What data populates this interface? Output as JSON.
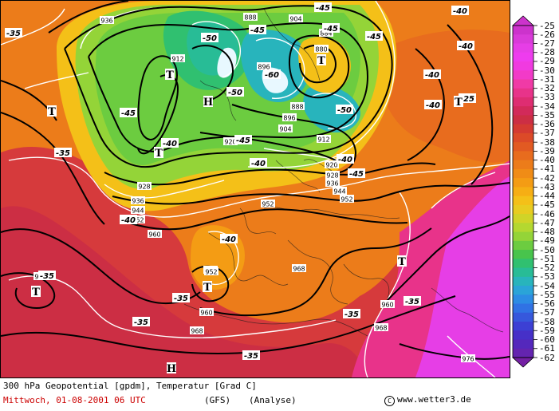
{
  "header": {
    "title": "300 hPa Geopotential [gpdm], Temperatur [Grad C]",
    "datetime": "Mittwoch, 01-08-2001  06 UTC",
    "model": "(GFS)",
    "run": "(Analyse)",
    "copyright": "www.wetter3.de",
    "copyright_symbol": "C"
  },
  "legend": {
    "values": [
      "-25",
      "-26",
      "-27",
      "-28",
      "-29",
      "-30",
      "-31",
      "-32",
      "-33",
      "-34",
      "-35",
      "-36",
      "-37",
      "-38",
      "-39",
      "-40",
      "-41",
      "-42",
      "-43",
      "-44",
      "-45",
      "-46",
      "-47",
      "-48",
      "-49",
      "-50",
      "-51",
      "-52",
      "-53",
      "-54",
      "-55",
      "-56",
      "-57",
      "-58",
      "-59",
      "-60",
      "-61",
      "-62"
    ],
    "colors": [
      "#cc33cc",
      "#d93bd9",
      "#e63ee6",
      "#ee3cee",
      "#f03ae0",
      "#f23ac8",
      "#f03aa6",
      "#e8338a",
      "#de2d72",
      "#d22a5a",
      "#cc2e44",
      "#d43a32",
      "#dc4a28",
      "#e25a22",
      "#e86c1e",
      "#ec7c1a",
      "#f08c16",
      "#f49c14",
      "#f6ae14",
      "#f4c018",
      "#e8cc20",
      "#d0d428",
      "#b4d830",
      "#94d438",
      "#6ccc40",
      "#48c44c",
      "#30c070",
      "#28bc96",
      "#28b4bc",
      "#2aa4d8",
      "#2c8ce4",
      "#3072e4",
      "#3658dc",
      "#3c40d4",
      "#4630c8",
      "#5428bc",
      "#6424b0",
      "#7420a4"
    ]
  },
  "map": {
    "geopotential_labels": [
      "936",
      "888",
      "904",
      "880",
      "884",
      "912",
      "896",
      "888",
      "896",
      "904",
      "912",
      "920",
      "920",
      "928",
      "928",
      "936",
      "944",
      "952",
      "952",
      "936",
      "944",
      "952",
      "960",
      "960",
      "952",
      "960",
      "968",
      "968",
      "960",
      "968",
      "976",
      "968"
    ],
    "temperature_labels": [
      "-45",
      "-40",
      "-35",
      "-45",
      "-50",
      "-50",
      "-45",
      "-60",
      "-50",
      "-45",
      "-45",
      "-45",
      "-40",
      "-45",
      "-40",
      "-40",
      "-40",
      "-40",
      "-40",
      "-35",
      "-40",
      "-35",
      "-35",
      "-35",
      "-35",
      "-35",
      "-25",
      "-40",
      "-35"
    ],
    "high_symbols": [
      "H",
      "H"
    ],
    "low_symbols": [
      "T",
      "T",
      "T",
      "T",
      "T",
      "T",
      "T",
      "T"
    ]
  }
}
